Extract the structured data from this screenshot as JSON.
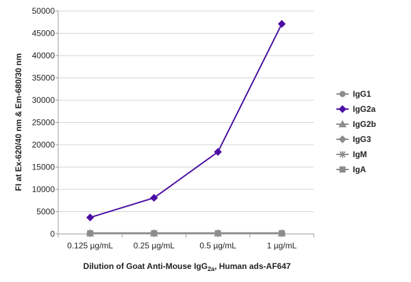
{
  "chart_data": {
    "type": "line",
    "title": "",
    "x_label_parts": [
      "Dilution of Goat Anti-Mouse IgG",
      "2a",
      ", Human ads-AF647"
    ],
    "ylabel": "FI at Ex-620/40 nm & Em-680/30 nm",
    "categories": [
      "0.125 µg/mL",
      "0.25 µg/mL",
      "0.5 µg/mL",
      "1 µg/mL"
    ],
    "ylim": [
      0,
      50000
    ],
    "yticks": [
      0,
      5000,
      10000,
      15000,
      20000,
      25000,
      30000,
      35000,
      40000,
      45000,
      50000
    ],
    "grid": "horizontal",
    "legend_position": "right",
    "series": [
      {
        "name": "IgG1",
        "values": [
          150,
          150,
          150,
          150
        ],
        "color": "#8c8c8c",
        "marker": "circle"
      },
      {
        "name": "IgG2a",
        "values": [
          3700,
          8100,
          18400,
          47100
        ],
        "color": "#4b0fa3",
        "marker": "diamond"
      },
      {
        "name": "IgG2b",
        "values": [
          150,
          150,
          150,
          150
        ],
        "color": "#8c8c8c",
        "marker": "triangle"
      },
      {
        "name": "IgG3",
        "values": [
          150,
          150,
          150,
          150
        ],
        "color": "#8c8c8c",
        "marker": "diamond"
      },
      {
        "name": "IgM",
        "values": [
          150,
          150,
          150,
          150
        ],
        "color": "#8c8c8c",
        "marker": "star"
      },
      {
        "name": "IgA",
        "values": [
          150,
          150,
          150,
          150
        ],
        "color": "#8c8c8c",
        "marker": "square"
      }
    ]
  }
}
